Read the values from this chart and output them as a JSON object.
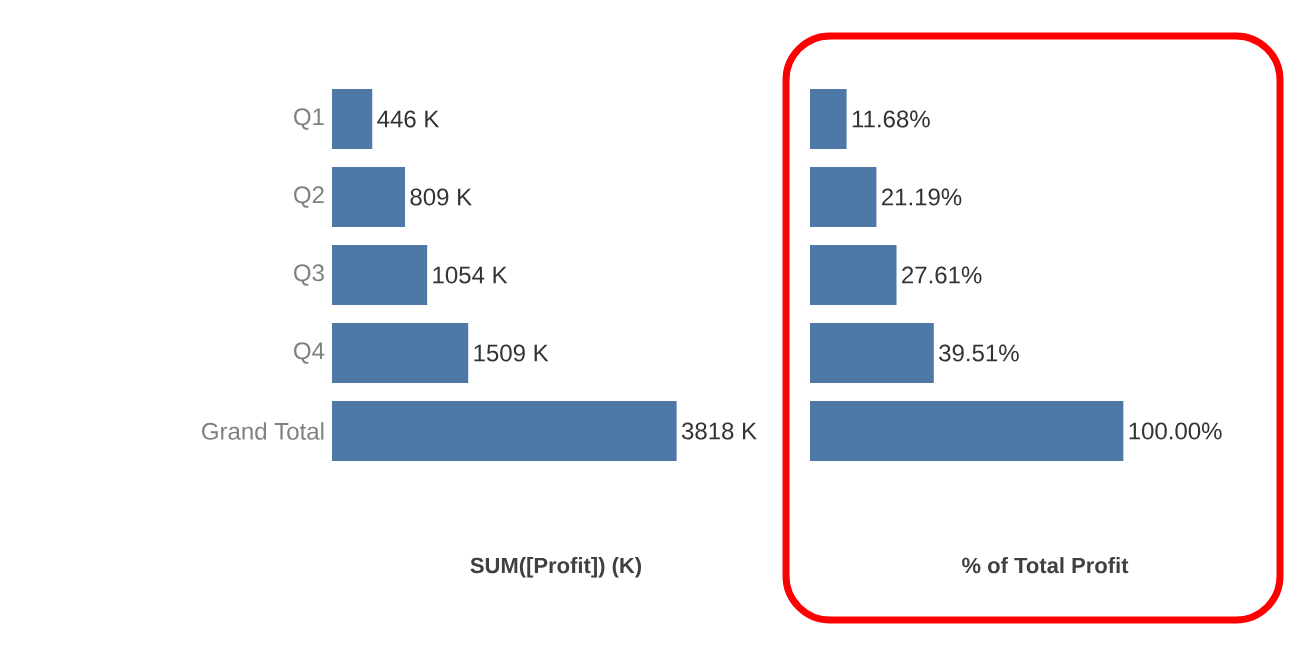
{
  "chart_data": [
    {
      "type": "bar",
      "orientation": "horizontal",
      "xlabel": "SUM([Profit]) (K)",
      "categories": [
        "Q1",
        "Q2",
        "Q3",
        "Q4",
        "Grand Total"
      ],
      "values": [
        446,
        809,
        1054,
        1509,
        3818
      ],
      "color": "#4e79a7",
      "data_labels": true,
      "value_labels": [
        "446 K",
        "809 K",
        "1054 K",
        "1509 K",
        "3818 K"
      ],
      "tick_labels": "y"
    },
    {
      "type": "bar",
      "orientation": "horizontal",
      "xlabel": "% of Total Profit",
      "values": [
        11.68,
        21.19,
        27.61,
        39.51,
        100.0
      ],
      "color": "#4e79a7",
      "data_labels": true,
      "value_labels": [
        "11.68%",
        "21.19%",
        "27.61%",
        "39.51%",
        "100.00%"
      ],
      "tick_labels": false
    }
  ]
}
